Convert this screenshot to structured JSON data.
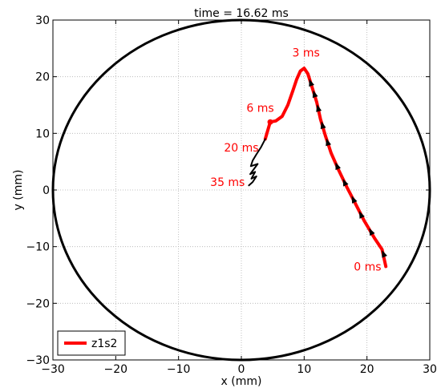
{
  "chart_data": {
    "type": "line",
    "title": "time = 16.62 ms",
    "xlabel": "x (mm)",
    "ylabel": "y (mm)",
    "xlim": [
      -30,
      30
    ],
    "ylim": [
      -30,
      30
    ],
    "xticks": [
      -30,
      -20,
      -10,
      0,
      10,
      20,
      30
    ],
    "yticks": [
      -30,
      -20,
      -10,
      0,
      10,
      20,
      30
    ],
    "xtick_labels": [
      "−30",
      "−20",
      "−10",
      "0",
      "10",
      "20",
      "30"
    ],
    "ytick_labels": [
      "−30",
      "−20",
      "−10",
      "0",
      "10",
      "20",
      "30"
    ],
    "grid": true,
    "legend_position": "lower-left",
    "boundary_circle": {
      "cx": 0,
      "cy": 0,
      "r": 30,
      "color": "#000000"
    },
    "series": [
      {
        "name": "z1s2",
        "color": "#ff0000",
        "x": [
          23.0,
          22.4,
          21.2,
          19.6,
          18.2,
          16.8,
          15.5,
          14.3,
          13.4,
          12.6,
          12.0,
          11.3,
          10.6,
          10.0,
          9.4,
          8.8,
          8.2,
          7.4,
          6.5,
          5.5,
          4.6,
          4.2,
          3.8
        ],
        "y": [
          -13.5,
          -10.5,
          -8.5,
          -5.5,
          -2.5,
          0.5,
          3.5,
          6.5,
          9.5,
          12.5,
          15.5,
          18.0,
          20.5,
          21.5,
          21.0,
          19.5,
          17.5,
          15.0,
          13.0,
          12.2,
          12.0,
          10.5,
          9.0
        ]
      },
      {
        "name": "",
        "color": "#000000",
        "x": [
          3.8,
          3.1,
          2.4,
          1.8,
          1.5,
          2.6,
          1.8,
          1.4,
          2.2,
          1.6,
          2.4,
          1.8,
          1.2
        ],
        "y": [
          9.0,
          7.5,
          6.3,
          5.2,
          4.2,
          4.6,
          3.4,
          2.8,
          3.2,
          2.0,
          2.4,
          1.4,
          0.8
        ]
      }
    ],
    "arrows": [
      {
        "x": 22.6,
        "y": -11.2,
        "dx": -0.4,
        "dy": 1.0
      },
      {
        "x": 20.6,
        "y": -7.3,
        "dx": -0.5,
        "dy": 1.0
      },
      {
        "x": 19.0,
        "y": -4.3,
        "dx": -0.45,
        "dy": 1.0
      },
      {
        "x": 17.8,
        "y": -1.6,
        "dx": -0.45,
        "dy": 1.0
      },
      {
        "x": 16.4,
        "y": 1.4,
        "dx": -0.45,
        "dy": 1.0
      },
      {
        "x": 15.2,
        "y": 4.3,
        "dx": -0.4,
        "dy": 1.0
      },
      {
        "x": 13.7,
        "y": 8.5,
        "dx": -0.3,
        "dy": 1.0
      },
      {
        "x": 12.9,
        "y": 11.5,
        "dx": -0.25,
        "dy": 1.0
      },
      {
        "x": 12.2,
        "y": 14.5,
        "dx": -0.25,
        "dy": 1.0
      },
      {
        "x": 11.6,
        "y": 17.0,
        "dx": -0.3,
        "dy": 1.0
      },
      {
        "x": 11.0,
        "y": 19.0,
        "dx": -0.35,
        "dy": 1.0
      }
    ],
    "dot": {
      "x": 4.6,
      "y": 12.0,
      "color": "#ff0000"
    },
    "annotations": [
      {
        "text": "3 ms",
        "x": 10.3,
        "y": 24.3,
        "anchor": "middle",
        "color": "#ff0000"
      },
      {
        "text": "6 ms",
        "x": 3.0,
        "y": 14.5,
        "anchor": "middle",
        "color": "#ff0000"
      },
      {
        "text": "20 ms",
        "x": 0.0,
        "y": 7.5,
        "anchor": "middle",
        "color": "#ff0000"
      },
      {
        "text": "35 ms",
        "x": -2.2,
        "y": 1.4,
        "anchor": "middle",
        "color": "#ff0000"
      },
      {
        "text": "0 ms",
        "x": 20.1,
        "y": -13.5,
        "anchor": "middle",
        "color": "#ff0000"
      }
    ]
  }
}
